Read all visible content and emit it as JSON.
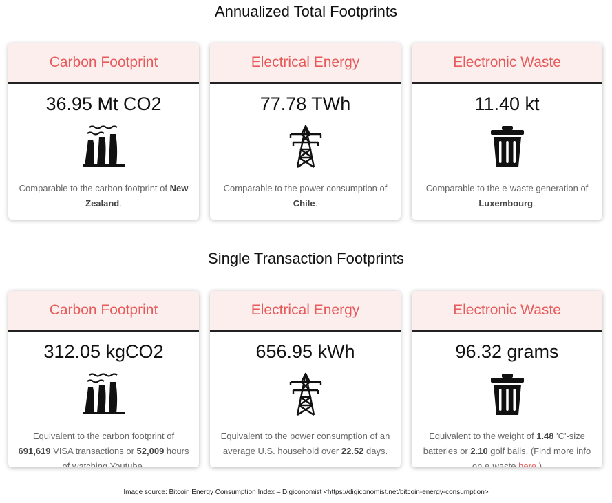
{
  "sections": [
    {
      "title": "Annualized Total Footprints",
      "cards": [
        {
          "header": "Carbon Footprint",
          "value": "36.95 Mt CO2",
          "icon": "factory-icon",
          "text": [
            {
              "t": "Comparable to the carbon footprint of ",
              "b": false
            },
            {
              "t": "New Zealand",
              "b": true
            },
            {
              "t": ".",
              "b": false
            }
          ]
        },
        {
          "header": "Electrical Energy",
          "value": "77.78 TWh",
          "icon": "power-tower-icon",
          "text": [
            {
              "t": "Comparable to the power consumption of ",
              "b": false
            },
            {
              "t": "Chile",
              "b": true
            },
            {
              "t": ".",
              "b": false
            }
          ]
        },
        {
          "header": "Electronic Waste",
          "value": "11.40 kt",
          "icon": "trash-bin-icon",
          "text": [
            {
              "t": "Comparable to the e-waste generation of ",
              "b": false
            },
            {
              "t": "Luxembourg",
              "b": true
            },
            {
              "t": ".",
              "b": false
            }
          ]
        }
      ]
    },
    {
      "title": "Single Transaction Footprints",
      "cards": [
        {
          "header": "Carbon Footprint",
          "value": "312.05 kgCO2",
          "icon": "factory-icon",
          "text": [
            {
              "t": "Equivalent to the carbon footprint of ",
              "b": false
            },
            {
              "t": "691,619",
              "b": true
            },
            {
              "t": " VISA transactions or ",
              "b": false
            },
            {
              "t": "52,009",
              "b": true
            },
            {
              "t": " hours of watching Youtube.",
              "b": false
            }
          ]
        },
        {
          "header": "Electrical Energy",
          "value": "656.95 kWh",
          "icon": "power-tower-icon",
          "text": [
            {
              "t": "Equivalent to the power consumption of an average U.S. household over ",
              "b": false
            },
            {
              "t": "22.52",
              "b": true
            },
            {
              "t": " days.",
              "b": false
            }
          ]
        },
        {
          "header": "Electronic Waste",
          "value": "96.32 grams",
          "icon": "trash-bin-icon",
          "text": [
            {
              "t": "Equivalent to the weight of ",
              "b": false
            },
            {
              "t": "1.48",
              "b": true
            },
            {
              "t": " 'C'-size batteries or ",
              "b": false
            },
            {
              "t": "2.10",
              "b": true
            },
            {
              "t": " golf balls. (Find more info on e-waste ",
              "b": false
            },
            {
              "t": "here",
              "b": false,
              "link": true
            },
            {
              "t": ".)",
              "b": false
            }
          ]
        }
      ]
    }
  ],
  "credit": "Image source:  Bitcoin Energy Consumption Index – Digiconomist <https://digiconomist.net/bitcoin-energy-consumption>",
  "colors": {
    "header_text": "#e75a5a",
    "header_bg": "#fdeeee",
    "link": "#e75a5a"
  }
}
